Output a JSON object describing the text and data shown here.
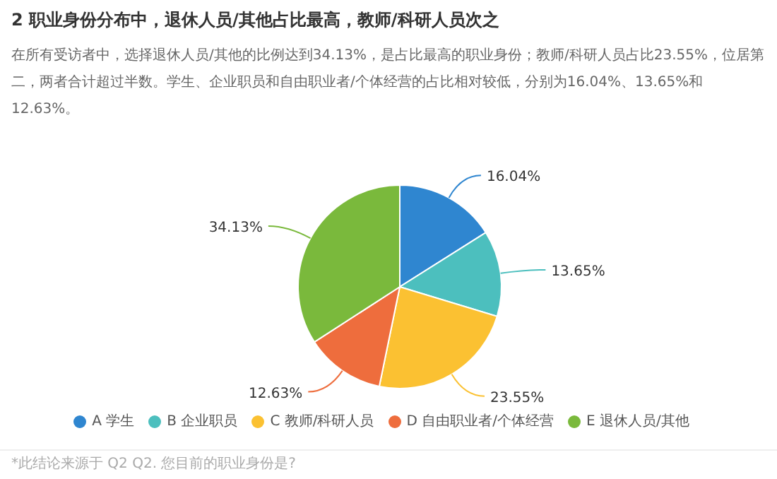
{
  "chart_data": {
    "type": "pie",
    "title": "2 职业身份分布中，退休人员/其他占比最高，教师/科研人员次之",
    "subtitle": "在所有受访者中，选择退休人员/其他的比例达到34.13%，是占比最高的职业身份；教师/科研人员占比23.55%，位居第二，两者合计超过半数。学生、企业职员和自由职业者/个体经营的占比相对较低，分别为16.04%、13.65%和12.63%。",
    "categories": [
      "A 学生",
      "B 企业职员",
      "C 教师/科研人员",
      "D 自由职业者/个体经营",
      "E 退休人员/其他"
    ],
    "values": [
      16.04,
      13.65,
      23.55,
      12.63,
      34.13
    ],
    "value_labels": [
      "16.04%",
      "13.65%",
      "23.55%",
      "12.63%",
      "34.13%"
    ],
    "colors": [
      "#2f86d0",
      "#4cbfbe",
      "#fbc132",
      "#ee6d3d",
      "#7ab93c"
    ],
    "legend": "bottom",
    "annotations": [
      "*此结论来源于 Q2 Q2. 您目前的职业身份是?"
    ]
  }
}
